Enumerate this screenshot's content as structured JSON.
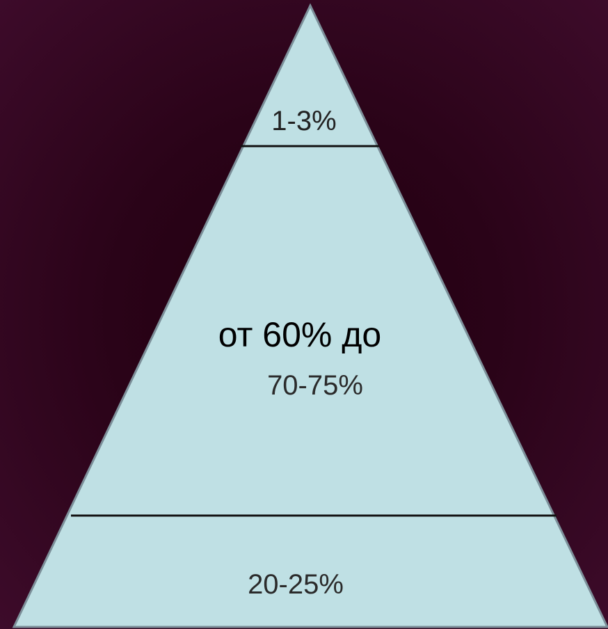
{
  "diagram": {
    "type": "pyramid",
    "colors": {
      "fill": "#bfe0e4",
      "outline": "#7c8f99",
      "divider": "#111111",
      "background": "#2a0318"
    },
    "tiers": [
      {
        "label": "1-3%"
      },
      {
        "label_line1": "от 60% до",
        "label_line2": "70-75%"
      },
      {
        "label": "20-25%"
      }
    ]
  }
}
